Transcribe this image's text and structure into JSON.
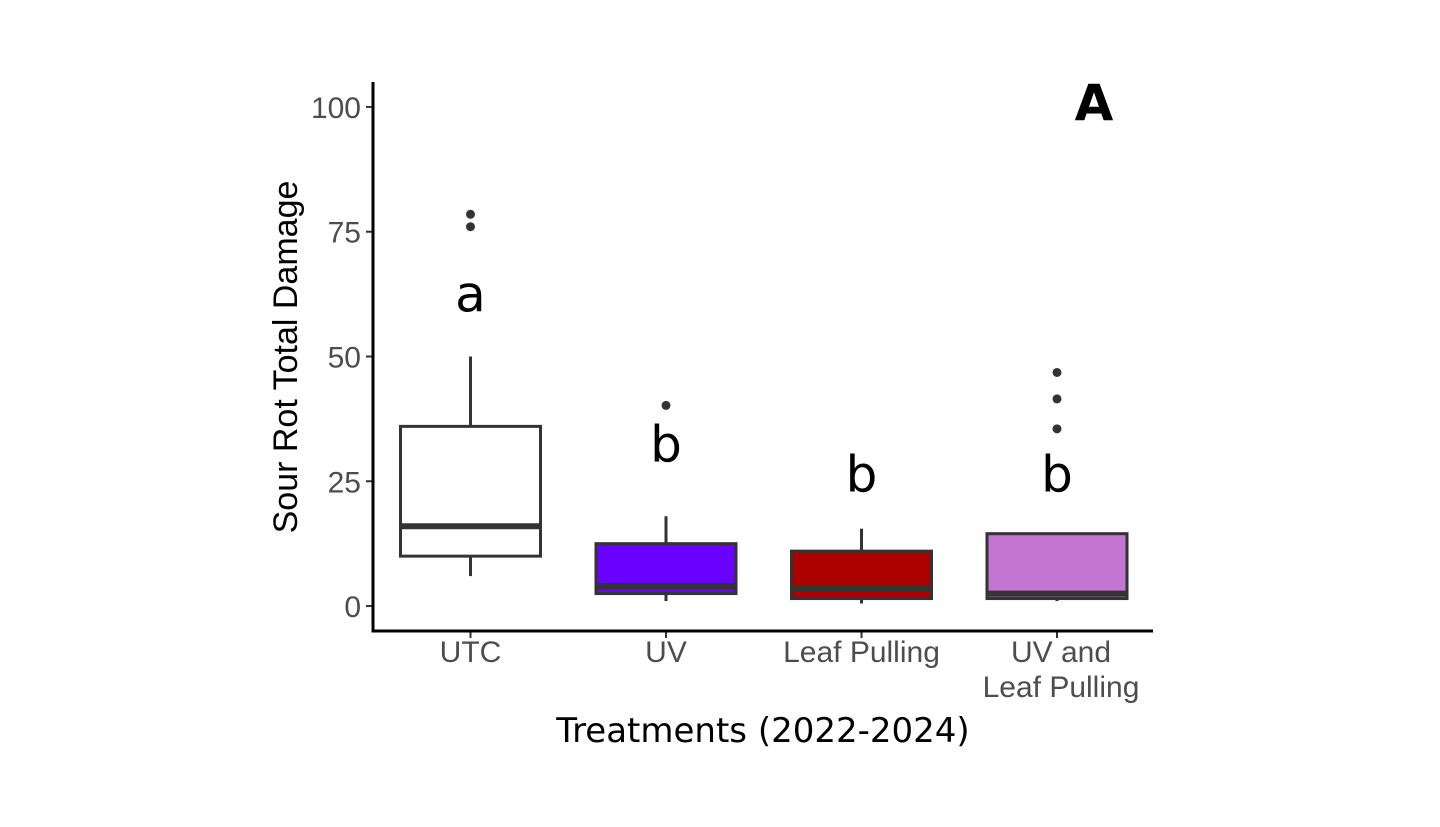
{
  "chart_data": {
    "type": "box",
    "panel_label": "A",
    "xlabel": "Treatments (2022-2024)",
    "ylabel": "Sour Rot Total Damage",
    "ylim": [
      -5,
      105
    ],
    "yticks": [
      0,
      25,
      50,
      75,
      100
    ],
    "grid": false,
    "legend": "none",
    "categories": [
      {
        "name": "UTC",
        "lines": [
          "UTC"
        ],
        "color": "#ffffff",
        "whisker_low": 6,
        "q1": 10,
        "median": 16,
        "q3": 36,
        "whisker_high": 50,
        "outliers": [
          76,
          78.5
        ],
        "letter": "a",
        "letter_y": 59
      },
      {
        "name": "UV",
        "lines": [
          "UV"
        ],
        "color": "#6a00ff",
        "whisker_low": 1,
        "q1": 2.5,
        "median": 4,
        "q3": 12.5,
        "whisker_high": 18,
        "outliers": [
          40.2
        ],
        "letter": "b",
        "letter_y": 29
      },
      {
        "name": "Leaf Pulling",
        "lines": [
          "Leaf Pulling"
        ],
        "color": "#aa0000",
        "whisker_low": 0.5,
        "q1": 1.5,
        "median": 3.5,
        "q3": 11,
        "whisker_high": 15.5,
        "outliers": [],
        "letter": "b",
        "letter_y": 23
      },
      {
        "name": "UV and Leaf Pulling",
        "lines": [
          "UV and",
          "Leaf Pulling"
        ],
        "color": "#c375d2",
        "whisker_low": 1,
        "q1": 1.5,
        "median": 2.5,
        "q3": 14.5,
        "whisker_high": 14.5,
        "outliers": [
          35.5,
          41.5,
          46.8
        ],
        "letter": "b",
        "letter_y": 23
      }
    ]
  }
}
